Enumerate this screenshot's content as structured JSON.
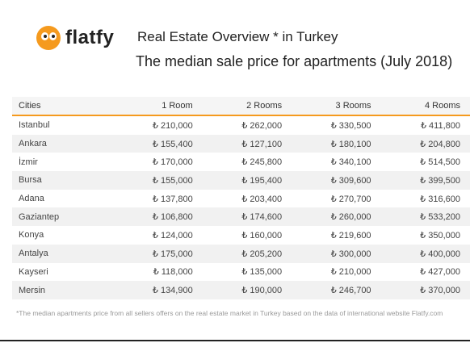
{
  "brand": {
    "name": "flatfy"
  },
  "title_line1": "Real Estate Overview * in Turkey",
  "title_line2": "The median sale price for apartments (July 2018)",
  "table": {
    "headers": [
      "Cities",
      "1 Room",
      "2 Rooms",
      "3 Rooms",
      "4 Rooms"
    ],
    "rows": [
      [
        "Istanbul",
        "₺ 210,000",
        "₺ 262,000",
        "₺ 330,500",
        "₺ 411,800"
      ],
      [
        "Ankara",
        "₺ 155,400",
        "₺ 127,100",
        "₺ 180,100",
        "₺ 204,800"
      ],
      [
        "İzmir",
        "₺ 170,000",
        "₺ 245,800",
        "₺ 340,100",
        "₺ 514,500"
      ],
      [
        "Bursa",
        "₺ 155,000",
        "₺ 195,400",
        "₺ 309,600",
        "₺ 399,500"
      ],
      [
        "Adana",
        "₺ 137,800",
        "₺ 203,400",
        "₺ 270,700",
        "₺ 316,600"
      ],
      [
        "Gaziantep",
        "₺ 106,800",
        "₺ 174,600",
        "₺ 260,000",
        "₺ 533,200"
      ],
      [
        "Konya",
        "₺ 124,000",
        "₺ 160,000",
        "₺ 219,600",
        "₺ 350,000"
      ],
      [
        "Antalya",
        "₺ 175,000",
        "₺ 205,200",
        "₺ 300,000",
        "₺ 400,000"
      ],
      [
        "Kayseri",
        "₺ 118,000",
        "₺ 135,000",
        "₺ 210,000",
        "₺ 427,000"
      ],
      [
        "Mersin",
        "₺ 134,900",
        "₺ 190,000",
        "₺ 246,700",
        "₺ 370,000"
      ]
    ]
  },
  "footnote": "*The median apartments price from all sellers offers on the real estate market in Turkey based on the data of international website Flatfy.com",
  "colors": {
    "accent": "#f59a1e",
    "row_alt": "#f1f1f1"
  }
}
